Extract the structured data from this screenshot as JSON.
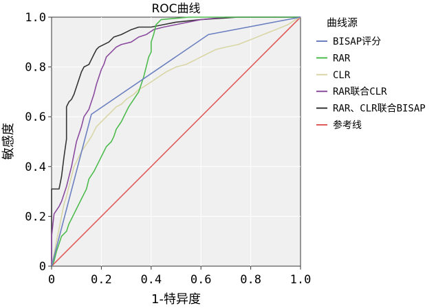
{
  "chart_data": {
    "type": "line",
    "title": "ROC曲线",
    "xlabel": "1-特异度",
    "ylabel": "敏感度",
    "xlim": [
      0,
      1
    ],
    "ylim": [
      0,
      1
    ],
    "x_ticks": [
      "0",
      "0.2",
      "0.4",
      "0.6",
      "0.8",
      "1.0"
    ],
    "y_ticks": [
      "0",
      "0.2",
      "0.4",
      "0.6",
      "0.8",
      "1.0"
    ],
    "grid": true,
    "background": "#f0f0f0",
    "legend": {
      "title": "曲线源",
      "placement": "right"
    },
    "series": [
      {
        "name": "BISAP评分",
        "color": "#6b7fc0",
        "points": [
          [
            0,
            0
          ],
          [
            0.16,
            0.61
          ],
          [
            0.63,
            0.93
          ],
          [
            1,
            1
          ]
        ]
      },
      {
        "name": "RAR",
        "color": "#4cbb4c",
        "points": [
          [
            0,
            0
          ],
          [
            0.01,
            0.02
          ],
          [
            0.02,
            0.06
          ],
          [
            0.03,
            0.09
          ],
          [
            0.04,
            0.12
          ],
          [
            0.06,
            0.14
          ],
          [
            0.07,
            0.17
          ],
          [
            0.08,
            0.19
          ],
          [
            0.09,
            0.21
          ],
          [
            0.1,
            0.23
          ],
          [
            0.11,
            0.25
          ],
          [
            0.12,
            0.27
          ],
          [
            0.13,
            0.29
          ],
          [
            0.14,
            0.31
          ],
          [
            0.15,
            0.35
          ],
          [
            0.17,
            0.38
          ],
          [
            0.18,
            0.4
          ],
          [
            0.2,
            0.44
          ],
          [
            0.21,
            0.46
          ],
          [
            0.22,
            0.48
          ],
          [
            0.24,
            0.5
          ],
          [
            0.25,
            0.52
          ],
          [
            0.26,
            0.55
          ],
          [
            0.28,
            0.58
          ],
          [
            0.3,
            0.62
          ],
          [
            0.31,
            0.64
          ],
          [
            0.33,
            0.67
          ],
          [
            0.35,
            0.7
          ],
          [
            0.36,
            0.73
          ],
          [
            0.37,
            0.76
          ],
          [
            0.38,
            0.8
          ],
          [
            0.39,
            0.84
          ],
          [
            0.4,
            0.86
          ],
          [
            0.4,
            0.9
          ],
          [
            0.41,
            0.93
          ],
          [
            0.42,
            0.97
          ],
          [
            0.44,
            0.99
          ],
          [
            0.55,
            1
          ],
          [
            1,
            1
          ]
        ]
      },
      {
        "name": "CLR",
        "color": "#d9d6a6",
        "points": [
          [
            0,
            0
          ],
          [
            0.01,
            0.05
          ],
          [
            0.02,
            0.1
          ],
          [
            0.03,
            0.15
          ],
          [
            0.04,
            0.2
          ],
          [
            0.05,
            0.25
          ],
          [
            0.06,
            0.28
          ],
          [
            0.07,
            0.32
          ],
          [
            0.08,
            0.36
          ],
          [
            0.09,
            0.4
          ],
          [
            0.11,
            0.44
          ],
          [
            0.12,
            0.46
          ],
          [
            0.14,
            0.49
          ],
          [
            0.16,
            0.52
          ],
          [
            0.18,
            0.56
          ],
          [
            0.2,
            0.58
          ],
          [
            0.22,
            0.6
          ],
          [
            0.24,
            0.62
          ],
          [
            0.26,
            0.64
          ],
          [
            0.28,
            0.65
          ],
          [
            0.3,
            0.67
          ],
          [
            0.33,
            0.69
          ],
          [
            0.35,
            0.71
          ],
          [
            0.37,
            0.72
          ],
          [
            0.4,
            0.74
          ],
          [
            0.43,
            0.76
          ],
          [
            0.46,
            0.78
          ],
          [
            0.5,
            0.8
          ],
          [
            0.54,
            0.81
          ],
          [
            0.58,
            0.83
          ],
          [
            0.62,
            0.85
          ],
          [
            0.66,
            0.87
          ],
          [
            0.7,
            0.88
          ],
          [
            0.75,
            0.89
          ],
          [
            0.8,
            0.91
          ],
          [
            0.85,
            0.93
          ],
          [
            0.9,
            0.95
          ],
          [
            0.95,
            0.97
          ],
          [
            0.98,
            0.99
          ],
          [
            1,
            1
          ]
        ]
      },
      {
        "name": "RAR联合CLR",
        "color": "#8a4a9e",
        "points": [
          [
            0,
            0
          ],
          [
            0,
            0.12
          ],
          [
            0.01,
            0.21
          ],
          [
            0.03,
            0.24
          ],
          [
            0.04,
            0.26
          ],
          [
            0.05,
            0.29
          ],
          [
            0.06,
            0.32
          ],
          [
            0.07,
            0.36
          ],
          [
            0.08,
            0.4
          ],
          [
            0.09,
            0.45
          ],
          [
            0.1,
            0.5
          ],
          [
            0.11,
            0.53
          ],
          [
            0.12,
            0.56
          ],
          [
            0.13,
            0.6
          ],
          [
            0.15,
            0.63
          ],
          [
            0.16,
            0.66
          ],
          [
            0.17,
            0.69
          ],
          [
            0.18,
            0.73
          ],
          [
            0.19,
            0.76
          ],
          [
            0.2,
            0.79
          ],
          [
            0.21,
            0.81
          ],
          [
            0.22,
            0.84
          ],
          [
            0.24,
            0.86
          ],
          [
            0.26,
            0.88
          ],
          [
            0.28,
            0.89
          ],
          [
            0.32,
            0.9
          ],
          [
            0.35,
            0.92
          ],
          [
            0.38,
            0.93
          ],
          [
            0.41,
            0.95
          ],
          [
            0.45,
            0.96
          ],
          [
            0.5,
            0.97
          ],
          [
            0.6,
            0.99
          ],
          [
            0.7,
            1
          ],
          [
            1,
            1
          ]
        ]
      },
      {
        "name": "RAR、CLR联合BISAP",
        "color": "#333333",
        "points": [
          [
            0,
            0
          ],
          [
            0,
            0.31
          ],
          [
            0.03,
            0.31
          ],
          [
            0.04,
            0.36
          ],
          [
            0.05,
            0.44
          ],
          [
            0.06,
            0.51
          ],
          [
            0.06,
            0.64
          ],
          [
            0.07,
            0.66
          ],
          [
            0.08,
            0.67
          ],
          [
            0.09,
            0.69
          ],
          [
            0.1,
            0.72
          ],
          [
            0.11,
            0.75
          ],
          [
            0.12,
            0.78
          ],
          [
            0.13,
            0.8
          ],
          [
            0.15,
            0.81
          ],
          [
            0.16,
            0.83
          ],
          [
            0.17,
            0.85
          ],
          [
            0.18,
            0.87
          ],
          [
            0.19,
            0.88
          ],
          [
            0.21,
            0.89
          ],
          [
            0.23,
            0.9
          ],
          [
            0.25,
            0.92
          ],
          [
            0.28,
            0.93
          ],
          [
            0.3,
            0.94
          ],
          [
            0.32,
            0.95
          ],
          [
            0.35,
            0.96
          ],
          [
            0.4,
            0.96
          ],
          [
            0.45,
            0.97
          ],
          [
            0.5,
            0.98
          ],
          [
            0.6,
            0.99
          ],
          [
            0.75,
            1
          ],
          [
            1,
            1
          ]
        ]
      },
      {
        "name": "参考线",
        "color": "#e05a5a",
        "points": [
          [
            0,
            0
          ],
          [
            1,
            1
          ]
        ]
      }
    ]
  }
}
